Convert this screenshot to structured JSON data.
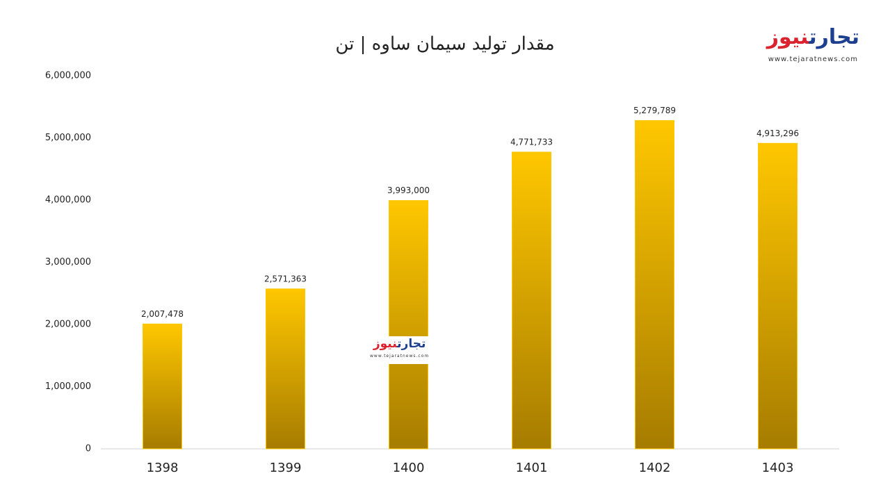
{
  "chart_data": {
    "type": "bar",
    "title": "مقدار تولید سیمان ساوه | تن",
    "categories": [
      "1398",
      "1399",
      "1400",
      "1401",
      "1402",
      "1403"
    ],
    "values": [
      2007478,
      2571363,
      3993000,
      4771733,
      5279789,
      4913296
    ],
    "value_labels": [
      "2,007,478",
      "2,571,363",
      "3,993,000",
      "4,771,733",
      "5,279,789",
      "4,913,296"
    ],
    "color": "#ffc700",
    "ylim": [
      0,
      6000000
    ],
    "yticks": [
      0,
      {
        "value": 1000000,
        "label": "1,000,000"
      },
      {
        "value": 2000000,
        "label": "2,000,000"
      },
      {
        "value": 3000000,
        "label": "3,000,000"
      },
      {
        "value": 4000000,
        "label": "4,000,000"
      },
      {
        "value": 5000000,
        "label": "5,000,000"
      },
      {
        "value": 6000000,
        "label": "6,000,000"
      }
    ],
    "grid": false
  },
  "logo": {
    "name_part1": "تجارت",
    "name_part2": "نیوز",
    "url": "www.tejaratnews.com"
  }
}
